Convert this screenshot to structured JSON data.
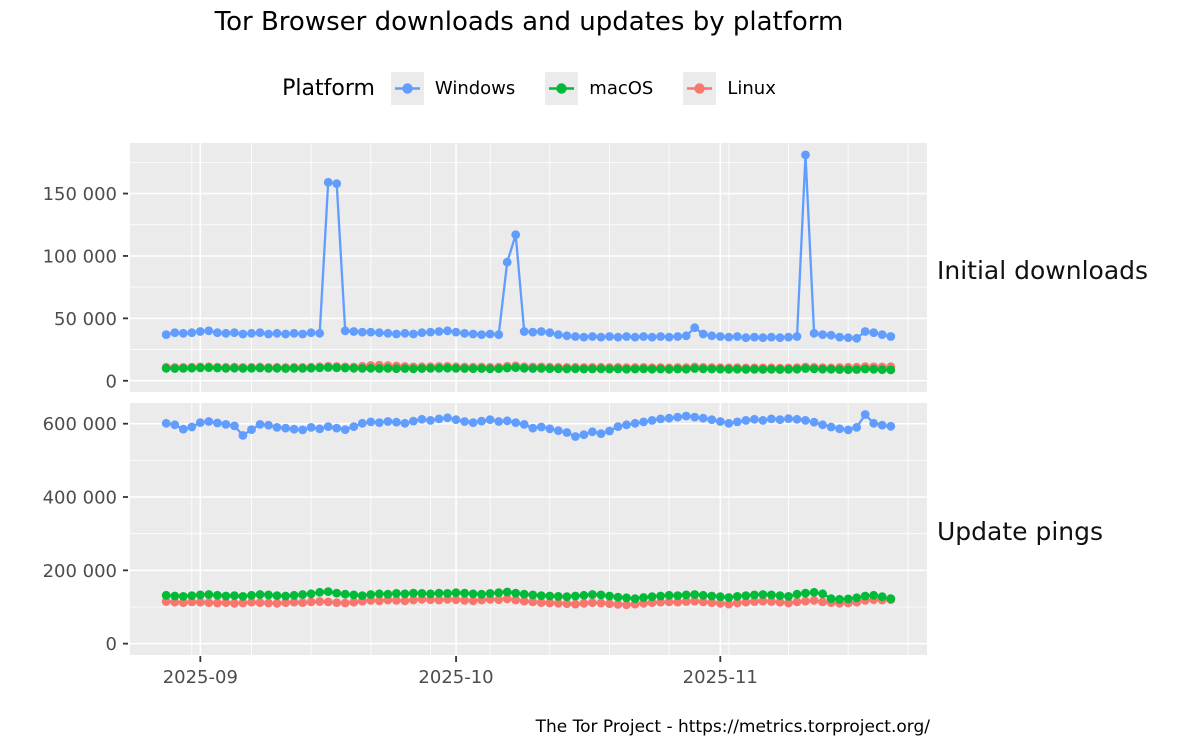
{
  "title": "Tor Browser downloads and updates by platform",
  "legend": {
    "title": "Platform",
    "items": [
      {
        "label": "Windows",
        "color": "#619CFF"
      },
      {
        "label": "macOS",
        "color": "#00BA38"
      },
      {
        "label": "Linux",
        "color": "#F8766D"
      }
    ]
  },
  "facets": [
    {
      "label": "Initial downloads"
    },
    {
      "label": "Update pings"
    }
  ],
  "caption": "The Tor Project - https://metrics.torproject.org/",
  "theme": {
    "panel_bg": "#EBEBEB",
    "grid_color": "#FFFFFF",
    "tick_color": "#333333",
    "axis_text_color": "#4D4D4D"
  },
  "chart_data": [
    {
      "type": "line",
      "title": "Initial downloads",
      "xlabel": "",
      "ylabel": "",
      "grid": true,
      "legend_position": "top",
      "ylim": [
        -9000,
        190500
      ],
      "yticks": [
        0,
        50000,
        100000,
        150000
      ],
      "ytick_labels": [
        "0",
        "50 000",
        "100 000",
        "150 000"
      ],
      "yticks_minor": [
        25000,
        75000,
        125000,
        175000
      ],
      "xticks": [
        "2025-09-01",
        "2025-10-01",
        "2025-11-01"
      ],
      "xtick_labels": [
        "2025-09",
        "2025-10",
        "2025-11"
      ],
      "xticks_minor": [
        "2025-08-31",
        "2025-09-07",
        "2025-09-14",
        "2025-09-21",
        "2025-09-28",
        "2025-10-05",
        "2025-10-12",
        "2025-10-19",
        "2025-10-26",
        "2025-11-02",
        "2025-11-09",
        "2025-11-16",
        "2025-11-23"
      ],
      "x": [
        "2025-08-28",
        "2025-08-29",
        "2025-08-30",
        "2025-08-31",
        "2025-09-01",
        "2025-09-02",
        "2025-09-03",
        "2025-09-04",
        "2025-09-05",
        "2025-09-06",
        "2025-09-07",
        "2025-09-08",
        "2025-09-09",
        "2025-09-10",
        "2025-09-11",
        "2025-09-12",
        "2025-09-13",
        "2025-09-14",
        "2025-09-15",
        "2025-09-16",
        "2025-09-17",
        "2025-09-18",
        "2025-09-19",
        "2025-09-20",
        "2025-09-21",
        "2025-09-22",
        "2025-09-23",
        "2025-09-24",
        "2025-09-25",
        "2025-09-26",
        "2025-09-27",
        "2025-09-28",
        "2025-09-29",
        "2025-09-30",
        "2025-10-01",
        "2025-10-02",
        "2025-10-03",
        "2025-10-04",
        "2025-10-05",
        "2025-10-06",
        "2025-10-07",
        "2025-10-08",
        "2025-10-09",
        "2025-10-10",
        "2025-10-11",
        "2025-10-12",
        "2025-10-13",
        "2025-10-14",
        "2025-10-15",
        "2025-10-16",
        "2025-10-17",
        "2025-10-18",
        "2025-10-19",
        "2025-10-20",
        "2025-10-21",
        "2025-10-22",
        "2025-10-23",
        "2025-10-24",
        "2025-10-25",
        "2025-10-26",
        "2025-10-27",
        "2025-10-28",
        "2025-10-29",
        "2025-10-30",
        "2025-10-31",
        "2025-11-01",
        "2025-11-02",
        "2025-11-03",
        "2025-11-04",
        "2025-11-05",
        "2025-11-06",
        "2025-11-07",
        "2025-11-08",
        "2025-11-09",
        "2025-11-10",
        "2025-11-11",
        "2025-11-12",
        "2025-11-13",
        "2025-11-14",
        "2025-11-15",
        "2025-11-16",
        "2025-11-17",
        "2025-11-18",
        "2025-11-19",
        "2025-11-20",
        "2025-11-21"
      ],
      "series": [
        {
          "name": "Windows",
          "color": "#619CFF",
          "values": [
            37000,
            38500,
            38000,
            38500,
            39500,
            40000,
            38500,
            38000,
            38500,
            37500,
            38000,
            38500,
            37500,
            38000,
            37500,
            38000,
            37500,
            38500,
            38000,
            159000,
            158000,
            40000,
            39500,
            39000,
            39000,
            38500,
            38000,
            37500,
            38000,
            37500,
            38500,
            39000,
            39500,
            40000,
            39000,
            38000,
            37500,
            37000,
            37500,
            37000,
            95000,
            117000,
            39500,
            39000,
            39500,
            38500,
            37000,
            36000,
            35500,
            35000,
            35500,
            35000,
            35500,
            35000,
            35500,
            35000,
            35500,
            35000,
            35500,
            35000,
            35500,
            36000,
            42500,
            37500,
            36000,
            35500,
            35000,
            35500,
            34500,
            35000,
            34500,
            35000,
            34500,
            35000,
            35500,
            181000,
            38000,
            37000,
            36500,
            35000,
            34500,
            34000,
            39500,
            38500,
            37000,
            35500
          ]
        },
        {
          "name": "macOS",
          "color": "#00BA38",
          "values": [
            10000,
            9800,
            9900,
            10100,
            10300,
            10500,
            10200,
            10000,
            10100,
            9900,
            10000,
            10200,
            9900,
            10000,
            9800,
            10000,
            9900,
            10100,
            10300,
            10600,
            10400,
            10200,
            10000,
            9900,
            10000,
            9800,
            9900,
            9700,
            9800,
            9600,
            9800,
            9900,
            10000,
            10100,
            9900,
            9800,
            9700,
            9800,
            9600,
            9700,
            10200,
            10500,
            10000,
            9800,
            9900,
            9700,
            9600,
            9500,
            9600,
            9400,
            9500,
            9600,
            9400,
            9500,
            9300,
            9400,
            9500,
            9300,
            9400,
            9200,
            9400,
            9300,
            9800,
            9500,
            9400,
            9300,
            9200,
            9300,
            9100,
            9200,
            9100,
            9200,
            9000,
            9100,
            9300,
            9800,
            9500,
            9300,
            9200,
            9000,
            8900,
            9000,
            9400,
            9200,
            8900,
            8700
          ]
        },
        {
          "name": "Linux",
          "color": "#F8766D",
          "values": [
            10800,
            10600,
            10700,
            10900,
            11100,
            11200,
            10900,
            10800,
            10900,
            10700,
            10800,
            11000,
            10700,
            10800,
            10600,
            10800,
            10700,
            10900,
            11200,
            11600,
            11400,
            11100,
            11000,
            11600,
            12200,
            12400,
            12100,
            11800,
            11400,
            11100,
            11200,
            11300,
            11400,
            11500,
            11200,
            11000,
            10900,
            11000,
            10800,
            10900,
            11600,
            11900,
            11200,
            11000,
            11100,
            10900,
            10800,
            10700,
            10800,
            10600,
            10700,
            10800,
            10600,
            10700,
            10500,
            10600,
            10700,
            10500,
            10600,
            10400,
            10600,
            10500,
            11000,
            10700,
            10600,
            10500,
            10400,
            10500,
            10300,
            10400,
            10300,
            10400,
            10200,
            10300,
            10500,
            11000,
            10700,
            10500,
            10400,
            10600,
            10800,
            10900,
            11300,
            11100,
            11000,
            11200
          ]
        }
      ],
      "series_draw_order": [
        0,
        2,
        1
      ]
    },
    {
      "type": "line",
      "title": "Update pings",
      "xlabel": "",
      "ylabel": "",
      "grid": true,
      "legend_position": "top",
      "ylim": [
        -31000,
        656500
      ],
      "yticks": [
        0,
        200000,
        400000,
        600000
      ],
      "ytick_labels": [
        "0",
        "200 000",
        "400 000",
        "600 000"
      ],
      "yticks_minor": [
        100000,
        300000,
        500000
      ],
      "xticks": [
        "2025-09-01",
        "2025-10-01",
        "2025-11-01"
      ],
      "xtick_labels": [
        "2025-09",
        "2025-10",
        "2025-11"
      ],
      "xticks_minor": [
        "2025-08-31",
        "2025-09-07",
        "2025-09-14",
        "2025-09-21",
        "2025-09-28",
        "2025-10-05",
        "2025-10-12",
        "2025-10-19",
        "2025-10-26",
        "2025-11-02",
        "2025-11-09",
        "2025-11-16",
        "2025-11-23"
      ],
      "x": [
        "2025-08-28",
        "2025-08-29",
        "2025-08-30",
        "2025-08-31",
        "2025-09-01",
        "2025-09-02",
        "2025-09-03",
        "2025-09-04",
        "2025-09-05",
        "2025-09-06",
        "2025-09-07",
        "2025-09-08",
        "2025-09-09",
        "2025-09-10",
        "2025-09-11",
        "2025-09-12",
        "2025-09-13",
        "2025-09-14",
        "2025-09-15",
        "2025-09-16",
        "2025-09-17",
        "2025-09-18",
        "2025-09-19",
        "2025-09-20",
        "2025-09-21",
        "2025-09-22",
        "2025-09-23",
        "2025-09-24",
        "2025-09-25",
        "2025-09-26",
        "2025-09-27",
        "2025-09-28",
        "2025-09-29",
        "2025-09-30",
        "2025-10-01",
        "2025-10-02",
        "2025-10-03",
        "2025-10-04",
        "2025-10-05",
        "2025-10-06",
        "2025-10-07",
        "2025-10-08",
        "2025-10-09",
        "2025-10-10",
        "2025-10-11",
        "2025-10-12",
        "2025-10-13",
        "2025-10-14",
        "2025-10-15",
        "2025-10-16",
        "2025-10-17",
        "2025-10-18",
        "2025-10-19",
        "2025-10-20",
        "2025-10-21",
        "2025-10-22",
        "2025-10-23",
        "2025-10-24",
        "2025-10-25",
        "2025-10-26",
        "2025-10-27",
        "2025-10-28",
        "2025-10-29",
        "2025-10-30",
        "2025-10-31",
        "2025-11-01",
        "2025-11-02",
        "2025-11-03",
        "2025-11-04",
        "2025-11-05",
        "2025-11-06",
        "2025-11-07",
        "2025-11-08",
        "2025-11-09",
        "2025-11-10",
        "2025-11-11",
        "2025-11-12",
        "2025-11-13",
        "2025-11-14",
        "2025-11-15",
        "2025-11-16",
        "2025-11-17",
        "2025-11-18",
        "2025-11-19",
        "2025-11-20",
        "2025-11-21"
      ],
      "series": [
        {
          "name": "Windows",
          "color": "#619CFF",
          "values": [
            601000,
            597000,
            585000,
            591000,
            603000,
            606000,
            602000,
            598000,
            594000,
            568000,
            584000,
            598000,
            596000,
            590000,
            588000,
            585000,
            583000,
            590000,
            586000,
            592000,
            588000,
            584000,
            592000,
            601000,
            605000,
            603000,
            606000,
            604000,
            601000,
            607000,
            612000,
            609000,
            613000,
            616000,
            611000,
            606000,
            603000,
            607000,
            611000,
            606000,
            608000,
            603000,
            598000,
            588000,
            591000,
            586000,
            581000,
            576000,
            565000,
            570000,
            578000,
            573000,
            580000,
            592000,
            597000,
            601000,
            605000,
            609000,
            613000,
            615000,
            618000,
            621000,
            618000,
            615000,
            611000,
            606000,
            601000,
            605000,
            609000,
            612000,
            609000,
            613000,
            611000,
            614000,
            612000,
            609000,
            604000,
            597000,
            591000,
            586000,
            583000,
            590000,
            625000,
            601000,
            596000,
            593000
          ]
        },
        {
          "name": "macOS",
          "color": "#00BA38",
          "values": [
            132000,
            130000,
            129000,
            131000,
            133000,
            134000,
            132000,
            130000,
            131000,
            129000,
            132000,
            134000,
            133000,
            131000,
            130000,
            132000,
            134000,
            136000,
            140000,
            142000,
            138000,
            135000,
            133000,
            131000,
            134000,
            136000,
            135000,
            137000,
            136000,
            138000,
            137000,
            136000,
            138000,
            137000,
            139000,
            138000,
            136000,
            135000,
            137000,
            139000,
            141000,
            138000,
            135000,
            133000,
            131000,
            130000,
            129000,
            128000,
            130000,
            132000,
            134000,
            133000,
            130000,
            127000,
            125000,
            123000,
            126000,
            128000,
            130000,
            132000,
            131000,
            133000,
            134000,
            132000,
            130000,
            128000,
            126000,
            129000,
            131000,
            133000,
            134000,
            133000,
            131000,
            129000,
            135000,
            138000,
            140000,
            136000,
            123000,
            121000,
            122000,
            125000,
            130000,
            132000,
            128000,
            123000
          ]
        },
        {
          "name": "Linux",
          "color": "#F8766D",
          "values": [
            115000,
            113000,
            112000,
            114000,
            113000,
            112000,
            111000,
            112000,
            110000,
            111000,
            113000,
            112000,
            111000,
            110000,
            112000,
            113000,
            112000,
            114000,
            115000,
            114000,
            112000,
            111000,
            113000,
            116000,
            118000,
            117000,
            119000,
            118000,
            117000,
            119000,
            121000,
            120000,
            119000,
            121000,
            120000,
            118000,
            117000,
            119000,
            121000,
            120000,
            122000,
            119000,
            116000,
            114000,
            112000,
            111000,
            110000,
            109000,
            108000,
            110000,
            112000,
            111000,
            109000,
            107000,
            106000,
            108000,
            110000,
            112000,
            113000,
            114000,
            113000,
            115000,
            116000,
            114000,
            112000,
            110000,
            108000,
            111000,
            113000,
            115000,
            116000,
            115000,
            113000,
            111000,
            114000,
            116000,
            118000,
            114000,
            112000,
            110000,
            111000,
            113000,
            118000,
            120000,
            119000,
            120000
          ]
        }
      ],
      "series_draw_order": [
        0,
        2,
        1
      ]
    }
  ]
}
